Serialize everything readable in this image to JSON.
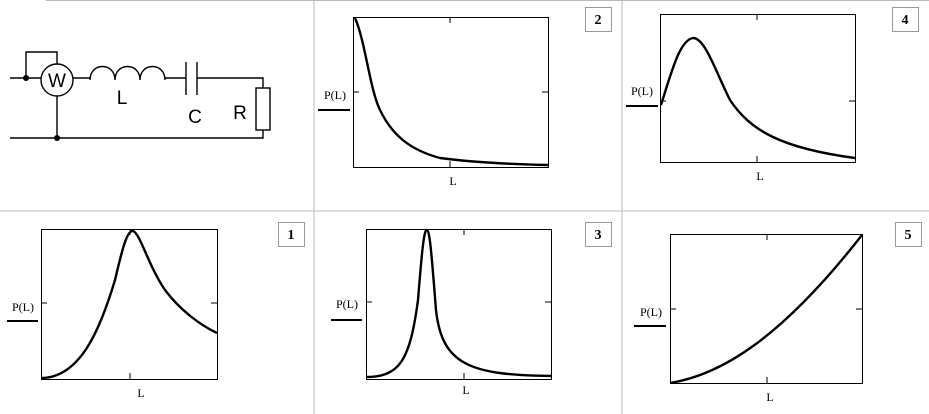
{
  "circuit": {
    "labels": [
      "W",
      "L",
      "C",
      "R"
    ]
  },
  "panels": [
    {
      "number": "2",
      "y_label": "P(L)",
      "x_label": "L"
    },
    {
      "number": "4",
      "y_label": "P(L)",
      "x_label": "L"
    },
    {
      "number": "1",
      "y_label": "P(L)",
      "x_label": "L"
    },
    {
      "number": "3",
      "y_label": "P(L)",
      "x_label": "L"
    },
    {
      "number": "5",
      "y_label": "P(L)",
      "x_label": "L"
    }
  ]
}
